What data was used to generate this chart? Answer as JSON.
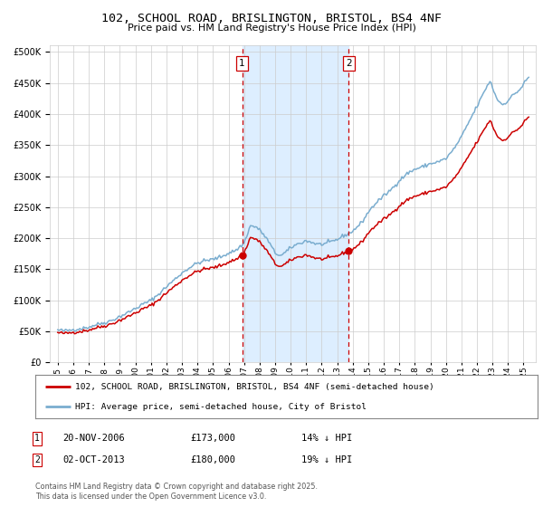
{
  "title": "102, SCHOOL ROAD, BRISLINGTON, BRISTOL, BS4 4NF",
  "subtitle": "Price paid vs. HM Land Registry's House Price Index (HPI)",
  "legend_line1": "102, SCHOOL ROAD, BRISLINGTON, BRISTOL, BS4 4NF (semi-detached house)",
  "legend_line2": "HPI: Average price, semi-detached house, City of Bristol",
  "annotation1_label": "1",
  "annotation1_date": "20-NOV-2006",
  "annotation1_price": "£173,000",
  "annotation1_hpi": "14% ↓ HPI",
  "annotation2_label": "2",
  "annotation2_date": "02-OCT-2013",
  "annotation2_price": "£180,000",
  "annotation2_hpi": "19% ↓ HPI",
  "footer": "Contains HM Land Registry data © Crown copyright and database right 2025.\nThis data is licensed under the Open Government Licence v3.0.",
  "red_color": "#cc0000",
  "blue_color": "#7aadcf",
  "shading_color": "#ddeeff",
  "grid_color": "#cccccc",
  "background_color": "#ffffff",
  "vline_color": "#cc0000",
  "sale1_year": 2006.88,
  "sale2_year": 2013.75,
  "sale1_price": 173000,
  "sale2_price": 180000,
  "ylim_max": 510000,
  "ylim_min": 0,
  "xlim_min": 1994.5,
  "xlim_max": 2025.8
}
